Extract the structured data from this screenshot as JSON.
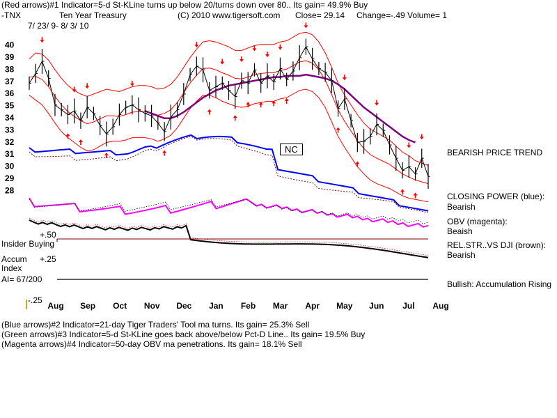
{
  "header": {
    "line1": "(Red arrows)#1 Indicator=5-d St-KLine turns up below 20/turns down over 80.. Its gain= 49.9% Buy",
    "symbol": "-TNX",
    "name": "Ten Year Treasury",
    "copyright": "(C) 2010 www.tigersoft.com",
    "close": "Close=   29.14",
    "change": "Change=-.49",
    "volume": "Volume= 1",
    "daterange": "7/ 23/ 9-  8/ 3/ 10"
  },
  "annotations": {
    "nc": "NC",
    "trend": "BEARISH PRICE TREND",
    "cp_label": "CLOSING POWER (blue):",
    "cp_value": "Bearish",
    "obv_label": "OBV (magenta):",
    "obv_value": "Beaish",
    "rs_label": "REL.STR..VS DJI (brown):",
    "rs_value": "Bearish",
    "accum": "Bullish: Accumulation Rising",
    "insider": "Insider Buying",
    "accum_title1": "Accum",
    "accum_title2": "Index",
    "ai": "AI= 67/200",
    "plus50": "+.50",
    "plus25": "+.25",
    "minus25": "-.25"
  },
  "footer": {
    "line2": "(Blue arrows)#2 Indicator=21-day Tiger Traders' Tool ma turns. Its gain= 25.3% Sell",
    "line3": "(Green arrows)#3 Indicator=5-d St-KLine goes back above/below Pct-D Line.. Its gain= 19.5% Buy",
    "line4": "(Magenta arrows)#4 Indicator=50-day OBV ma penetrations. Its gain= 18.1% Sell"
  },
  "colors": {
    "price": "#000000",
    "band": "#ff0000",
    "ma": "#800080",
    "cp": "#0000ff",
    "obv": "#ff00ff",
    "rs": "#000000",
    "ref": "#800000",
    "arrow": "#ff0000"
  },
  "chart_data": {
    "type": "line",
    "title": "Ten Year Treasury (-TNX)",
    "ylim": [
      27.5,
      40.5
    ],
    "y_ticks": [
      40,
      39,
      38,
      37,
      36,
      35,
      34,
      33,
      32,
      31,
      30,
      29,
      28
    ],
    "x_ticks": [
      "Aug",
      "Sep",
      "Oct",
      "Nov",
      "Dec",
      "Jan",
      "Feb",
      "Mar",
      "Apr",
      "May",
      "Jun",
      "Jul",
      "Aug"
    ],
    "price_close": [
      36.8,
      37.6,
      38.6,
      37.2,
      35.0,
      34.6,
      34.2,
      34.5,
      33.7,
      34.8,
      34.3,
      33.3,
      32.6,
      33.2,
      34.2,
      34.8,
      35.0,
      34.6,
      34.3,
      34.1,
      33.5,
      32.8,
      34.0,
      34.6,
      35.9,
      37.5,
      38.2,
      37.9,
      36.2,
      36.5,
      36.8,
      36.2,
      35.7,
      37.0,
      36.8,
      37.9,
      36.8,
      37.4,
      36.9,
      38.0,
      37.1,
      37.8,
      38.9,
      39.8,
      38.8,
      38.0,
      37.7,
      37.0,
      34.7,
      35.5,
      33.7,
      31.9,
      32.0,
      32.4,
      33.4,
      32.9,
      31.7,
      30.6,
      29.6,
      29.9,
      29.3,
      30.6,
      29.1
    ],
    "band_upper": [
      38.8,
      39.3,
      39.2,
      38.7,
      37.9,
      37.2,
      36.6,
      36.2,
      35.9,
      35.7,
      35.9,
      36.1,
      36.3,
      36.2,
      36.1,
      36.3,
      36.5,
      36.6,
      36.6,
      36.5,
      36.3,
      36.4,
      36.7,
      37.3,
      38.1,
      38.9,
      39.6,
      40.2,
      40.3,
      40.2,
      40.0,
      39.8,
      39.5,
      39.5,
      39.7,
      39.9,
      40.0,
      40.0,
      40.0,
      40.2,
      40.3,
      40.6,
      40.9,
      41.0,
      40.8,
      40.2,
      39.3,
      38.1,
      36.8,
      35.8,
      35.0,
      34.2,
      33.5,
      33.0,
      32.7,
      32.4,
      32.1,
      31.6,
      31.1,
      30.8,
      30.4,
      30.2,
      30.0
    ],
    "band_lower": [
      35.8,
      35.4,
      35.0,
      34.3,
      33.5,
      32.8,
      32.3,
      31.9,
      31.5,
      31.2,
      31.3,
      31.6,
      31.9,
      32.0,
      32.0,
      32.1,
      32.3,
      32.3,
      32.3,
      32.2,
      32.0,
      32.2,
      32.5,
      33.1,
      33.9,
      34.7,
      35.3,
      35.8,
      35.8,
      35.6,
      35.3,
      35.1,
      34.9,
      34.8,
      34.9,
      35.1,
      35.2,
      35.3,
      35.3,
      35.5,
      35.6,
      35.9,
      36.2,
      36.3,
      36.1,
      35.6,
      34.8,
      33.6,
      32.4,
      31.5,
      30.7,
      29.9,
      29.3,
      28.8,
      28.5,
      28.3,
      28.1,
      27.8,
      27.5,
      27.3,
      27.2,
      27.1,
      27.0
    ],
    "ma50": [
      null,
      null,
      null,
      null,
      null,
      null,
      null,
      null,
      null,
      null,
      null,
      null,
      null,
      null,
      null,
      null,
      null,
      null,
      34.5,
      34.3,
      34.1,
      33.9,
      33.9,
      34.1,
      34.4,
      34.8,
      35.2,
      35.6,
      35.9,
      36.2,
      36.4,
      36.6,
      36.7,
      36.8,
      36.9,
      37.0,
      37.1,
      37.2,
      37.3,
      37.3,
      37.4,
      37.4,
      37.4,
      37.5,
      37.4,
      37.3,
      37.2,
      37.0,
      36.7,
      36.3,
      35.8,
      35.3,
      34.8,
      34.4,
      34.0,
      33.6,
      33.2,
      32.8,
      32.4,
      32.1,
      31.9,
      null,
      null
    ]
  }
}
